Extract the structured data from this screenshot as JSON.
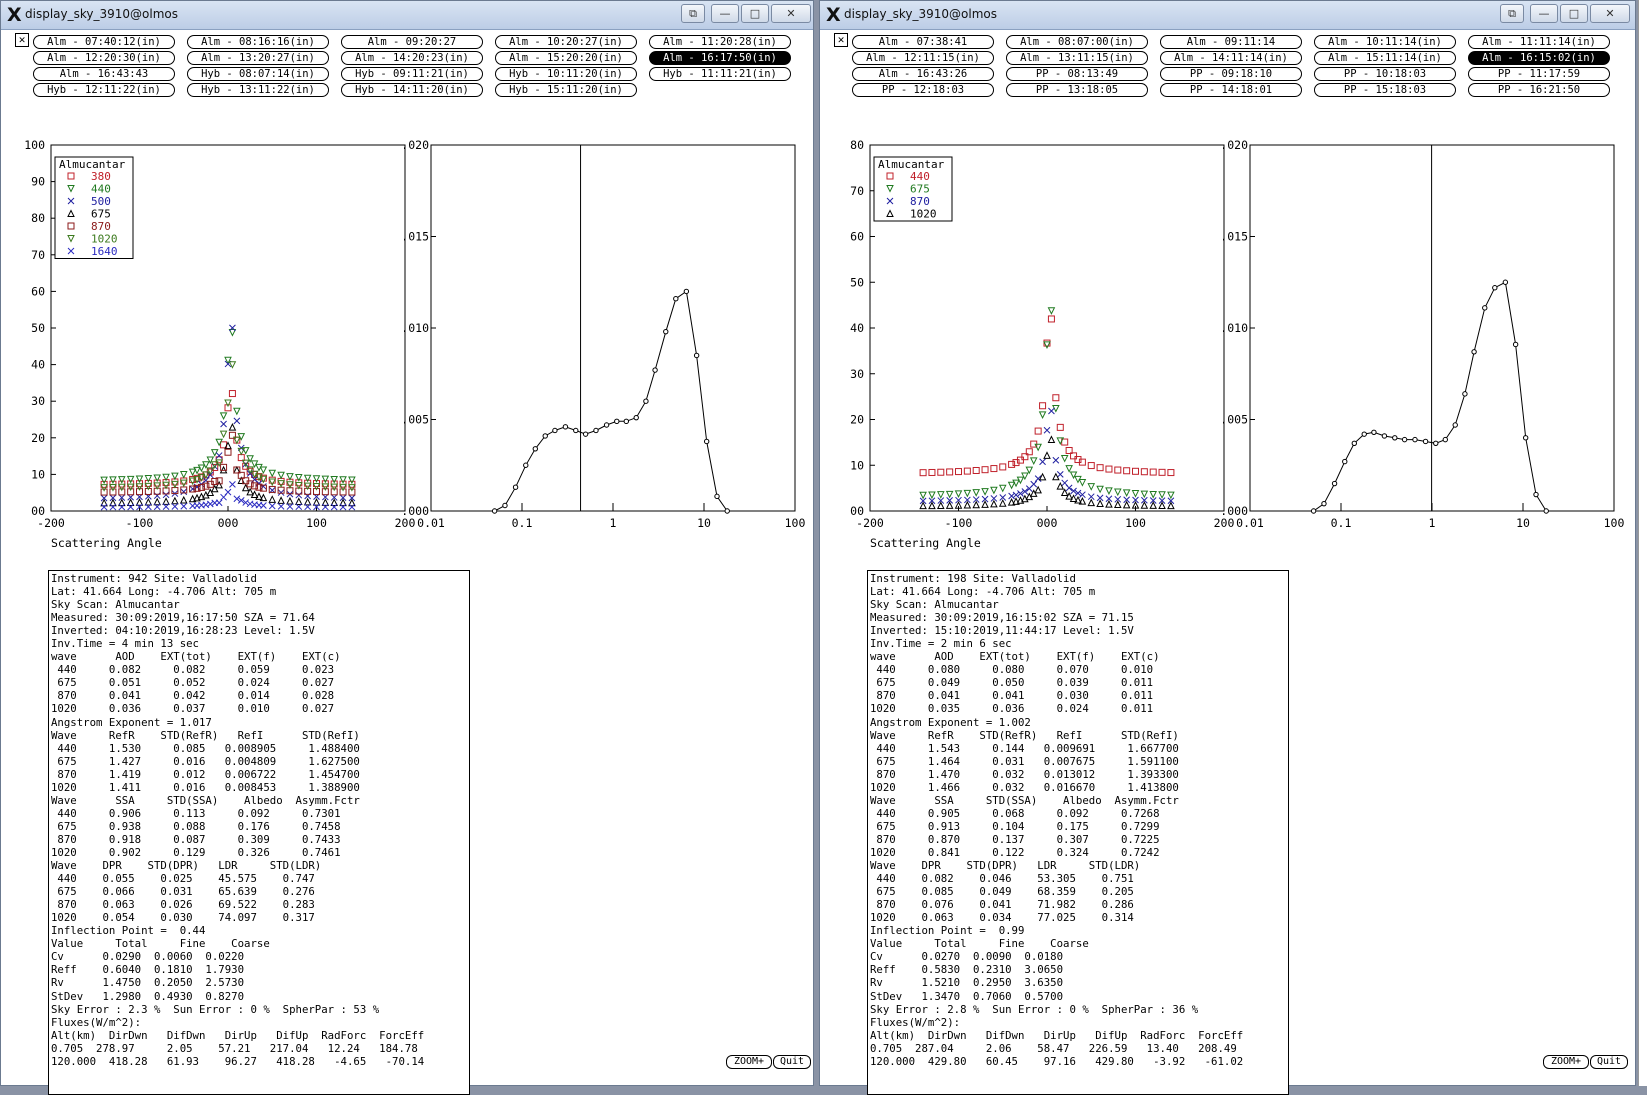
{
  "windows": [
    {
      "title": "display_sky_3910@olmos",
      "tabs": [
        "Alm - 07:40:12(in)",
        "Alm - 08:16:16(in)",
        "Alm - 09:20:27",
        "Alm - 10:20:27(in)",
        "Alm - 11:20:28(in)",
        "Alm - 12:20:30(in)",
        "Alm - 13:20:27(in)",
        "Alm - 14:20:23(in)",
        "Alm - 15:20:20(in)",
        "Alm - 16:17:50(in)",
        "Alm - 16:43:43",
        "Hyb - 08:07:14(in)",
        "Hyb - 09:11:21(in)",
        "Hyb - 10:11:20(in)",
        "Hyb - 11:11:21(in)",
        "Hyb - 12:11:22(in)",
        "Hyb - 13:11:22(in)",
        "Hyb - 14:11:20(in)",
        "Hyb - 15:11:20(in)"
      ],
      "selected_tab": 9,
      "left_plot": {
        "yticks": [
          "100",
          "90",
          "80",
          "70",
          "60",
          "50",
          "40",
          "30",
          "20",
          "10",
          "00"
        ],
        "xticks": [
          "-200",
          "-100",
          "000",
          "100",
          "200"
        ],
        "xlabel": "Scattering Angle",
        "legend_title": "Almucantar",
        "legend": [
          {
            "label": "380",
            "color": "#c0202a",
            "marker": "square"
          },
          {
            "label": "440",
            "color": "#207a20",
            "marker": "tri-down"
          },
          {
            "label": "500",
            "color": "#2020a0",
            "marker": "x"
          },
          {
            "label": "675",
            "color": "#000000",
            "marker": "tri-up"
          },
          {
            "label": "870",
            "color": "#8b1a1a",
            "marker": "square"
          },
          {
            "label": "1020",
            "color": "#3c7a1e",
            "marker": "tri-down"
          },
          {
            "label": "1640",
            "color": "#2b2bc0",
            "marker": "x"
          }
        ]
      },
      "right_plot": {
        "yticks": [
          "0.020",
          "0.015",
          "0.010",
          "0.005",
          "0.000"
        ],
        "xticks": [
          "0.01",
          "0.1",
          "1",
          "10",
          "100"
        ],
        "inflection_radius": 0.44,
        "size_dist": [
          [
            0.05,
            0
          ],
          [
            0.065,
            0.0003
          ],
          [
            0.085,
            0.0013
          ],
          [
            0.11,
            0.0025
          ],
          [
            0.14,
            0.0034
          ],
          [
            0.18,
            0.0041
          ],
          [
            0.23,
            0.0044
          ],
          [
            0.3,
            0.0046
          ],
          [
            0.39,
            0.0044
          ],
          [
            0.5,
            0.0042
          ],
          [
            0.65,
            0.0044
          ],
          [
            0.85,
            0.0047
          ],
          [
            1.1,
            0.0049
          ],
          [
            1.4,
            0.0049
          ],
          [
            1.8,
            0.0051
          ],
          [
            2.3,
            0.006
          ],
          [
            2.9,
            0.0077
          ],
          [
            3.8,
            0.0098
          ],
          [
            4.9,
            0.0116
          ],
          [
            6.4,
            0.012
          ],
          [
            8.3,
            0.0085
          ],
          [
            10.7,
            0.0038
          ],
          [
            13.9,
            0.0008
          ],
          [
            18,
            0
          ]
        ]
      },
      "info_text": "Instrument: 942 Site: Valladolid\nLat: 41.664 Long: -4.706 Alt: 705 m\nSky Scan: Almucantar\nMeasured: 30:09:2019,16:17:50 SZA = 71.64\nInverted: 04:10:2019,16:28:23 Level: 1.5V\nInv.Time = 4 min 13 sec\nwave      AOD    EXT(tot)    EXT(f)    EXT(c)\n 440     0.082     0.082     0.059     0.023\n 675     0.051     0.052     0.024     0.027\n 870     0.041     0.042     0.014     0.028\n1020     0.036     0.037     0.010     0.027\nAngstrom Exponent = 1.017\nWave     RefR    STD(RefR)   RefI      STD(RefI)\n 440     1.530     0.085   0.008905     1.488400\n 675     1.427     0.016   0.004809     1.627500\n 870     1.419     0.012   0.006722     1.454700\n1020     1.411     0.016   0.008453     1.388900\nWave      SSA     STD(SSA)    Albedo  Asymm.Fctr\n 440     0.906     0.113     0.092     0.7301\n 675     0.938     0.088     0.176     0.7458\n 870     0.918     0.087     0.309     0.7433\n1020     0.902     0.129     0.326     0.7461\nWave    DPR    STD(DPR)   LDR     STD(LDR)\n 440    0.055    0.025    45.575    0.747\n 675    0.066    0.031    65.639    0.276\n 870    0.063    0.026    69.522    0.283\n1020    0.054    0.030    74.097    0.317\nInflection Point =  0.44\nValue     Total     Fine    Coarse\nCv      0.0290  0.0060  0.0220\nReff    0.6040  0.1810  1.7930\nRv      1.4750  0.2050  2.5730\nStDev   1.2980  0.4930  0.8270\nSky Error : 2.3 %  Sun Error : 0 %  SpherPar : 53 %\nFluxes(W/m^2):\nAlt(km)  DirDwn   DifDwn   DirUp   DifUp  RadForc  ForcEff\n0.705  278.97     2.05    57.21   217.04   12.24   184.78\n120.000  418.28   61.93    96.27   418.28   -4.65   -70.14",
      "zoom_label": "ZOOM+",
      "quit_label": "Quit"
    },
    {
      "title": "display_sky_3910@olmos",
      "tabs": [
        "Alm - 07:38:41",
        "Alm - 08:07:00(in)",
        "Alm - 09:11:14",
        "Alm - 10:11:14(in)",
        "Alm - 11:11:14(in)",
        "Alm - 12:11:15(in)",
        "Alm - 13:11:15(in)",
        "Alm - 14:11:14(in)",
        "Alm - 15:11:14(in)",
        "Alm - 16:15:02(in)",
        "Alm - 16:43:26",
        "PP - 08:13:49",
        "PP - 09:18:10",
        "PP - 10:18:03",
        "PP - 11:17:59",
        "PP - 12:18:03",
        "PP - 13:18:05",
        "PP - 14:18:01",
        "PP - 15:18:03",
        "PP - 16:21:50"
      ],
      "selected_tab": 9,
      "left_plot": {
        "yticks": [
          "80",
          "70",
          "60",
          "50",
          "40",
          "30",
          "20",
          "10",
          "00"
        ],
        "xticks": [
          "-200",
          "-100",
          "000",
          "100",
          "200"
        ],
        "xlabel": "Scattering Angle",
        "legend_title": "Almucantar",
        "legend": [
          {
            "label": "440",
            "color": "#c0202a",
            "marker": "square"
          },
          {
            "label": "675",
            "color": "#207a20",
            "marker": "tri-down"
          },
          {
            "label": "870",
            "color": "#2020a0",
            "marker": "x"
          },
          {
            "label": "1020",
            "color": "#000000",
            "marker": "tri-up"
          }
        ]
      },
      "right_plot": {
        "yticks": [
          "0.020",
          "0.015",
          "0.010",
          "0.005",
          "0.000"
        ],
        "xticks": [
          "0.01",
          "0.1",
          "1",
          "10",
          "100"
        ],
        "inflection_radius": 0.99,
        "size_dist": [
          [
            0.05,
            0
          ],
          [
            0.065,
            0.0004
          ],
          [
            0.085,
            0.0015
          ],
          [
            0.11,
            0.0027
          ],
          [
            0.14,
            0.0037
          ],
          [
            0.18,
            0.0042
          ],
          [
            0.23,
            0.0043
          ],
          [
            0.3,
            0.0041
          ],
          [
            0.39,
            0.004
          ],
          [
            0.5,
            0.0039
          ],
          [
            0.65,
            0.0039
          ],
          [
            0.85,
            0.0038
          ],
          [
            1.1,
            0.0037
          ],
          [
            1.4,
            0.0039
          ],
          [
            1.8,
            0.0047
          ],
          [
            2.3,
            0.0064
          ],
          [
            2.9,
            0.0087
          ],
          [
            3.8,
            0.0111
          ],
          [
            4.9,
            0.0122
          ],
          [
            6.4,
            0.0125
          ],
          [
            8.3,
            0.0091
          ],
          [
            10.7,
            0.004
          ],
          [
            13.9,
            0.0009
          ],
          [
            18,
            0
          ]
        ]
      },
      "info_text": "Instrument: 198 Site: Valladolid\nLat: 41.664 Long: -4.706 Alt: 705 m\nSky Scan: Almucantar\nMeasured: 30:09:2019,16:15:02 SZA = 71.15\nInverted: 15:10:2019,11:44:17 Level: 1.5V\nInv.Time = 2 min 6 sec\nwave      AOD    EXT(tot)    EXT(f)    EXT(c)\n 440     0.080     0.080     0.070     0.010\n 675     0.049     0.050     0.039     0.011\n 870     0.041     0.041     0.030     0.011\n1020     0.035     0.036     0.024     0.011\nAngstrom Exponent = 1.002\nWave     RefR    STD(RefR)   RefI      STD(RefI)\n 440     1.543     0.144   0.009691     1.667700\n 675     1.464     0.031   0.007675     1.591100\n 870     1.470     0.032   0.013012     1.393300\n1020     1.466     0.032   0.016670     1.413800\nWave      SSA     STD(SSA)    Albedo  Asymm.Fctr\n 440     0.905     0.068     0.092     0.7268\n 675     0.913     0.104     0.175     0.7299\n 870     0.870     0.137     0.307     0.7225\n1020     0.841     0.122     0.324     0.7242\nWave    DPR    STD(DPR)   LDR     STD(LDR)\n 440    0.082    0.046    53.305    0.751\n 675    0.085    0.049    68.359    0.205\n 870    0.076    0.041    71.982    0.286\n1020    0.063    0.034    77.025    0.314\nInflection Point =  0.99\nValue     Total     Fine    Coarse\nCv      0.0270  0.0090  0.0180\nReff    0.5830  0.2310  3.0650\nRv      1.5210  0.2950  3.6350\nStDev   1.3470  0.7060  0.5700\nSky Error : 2.8 %  Sun Error : 0 %  SpherPar : 36 %\nFluxes(W/m^2):\nAlt(km)  DirDwn   DifDwn   DirUp   DifUp  RadForc  ForcEff\n0.705  287.04     2.06    58.47   226.59   13.40   208.49\n120.000  429.80   60.45    97.16   429.80   -3.92   -61.02",
      "zoom_label": "ZOOM+",
      "quit_label": "Quit"
    }
  ]
}
